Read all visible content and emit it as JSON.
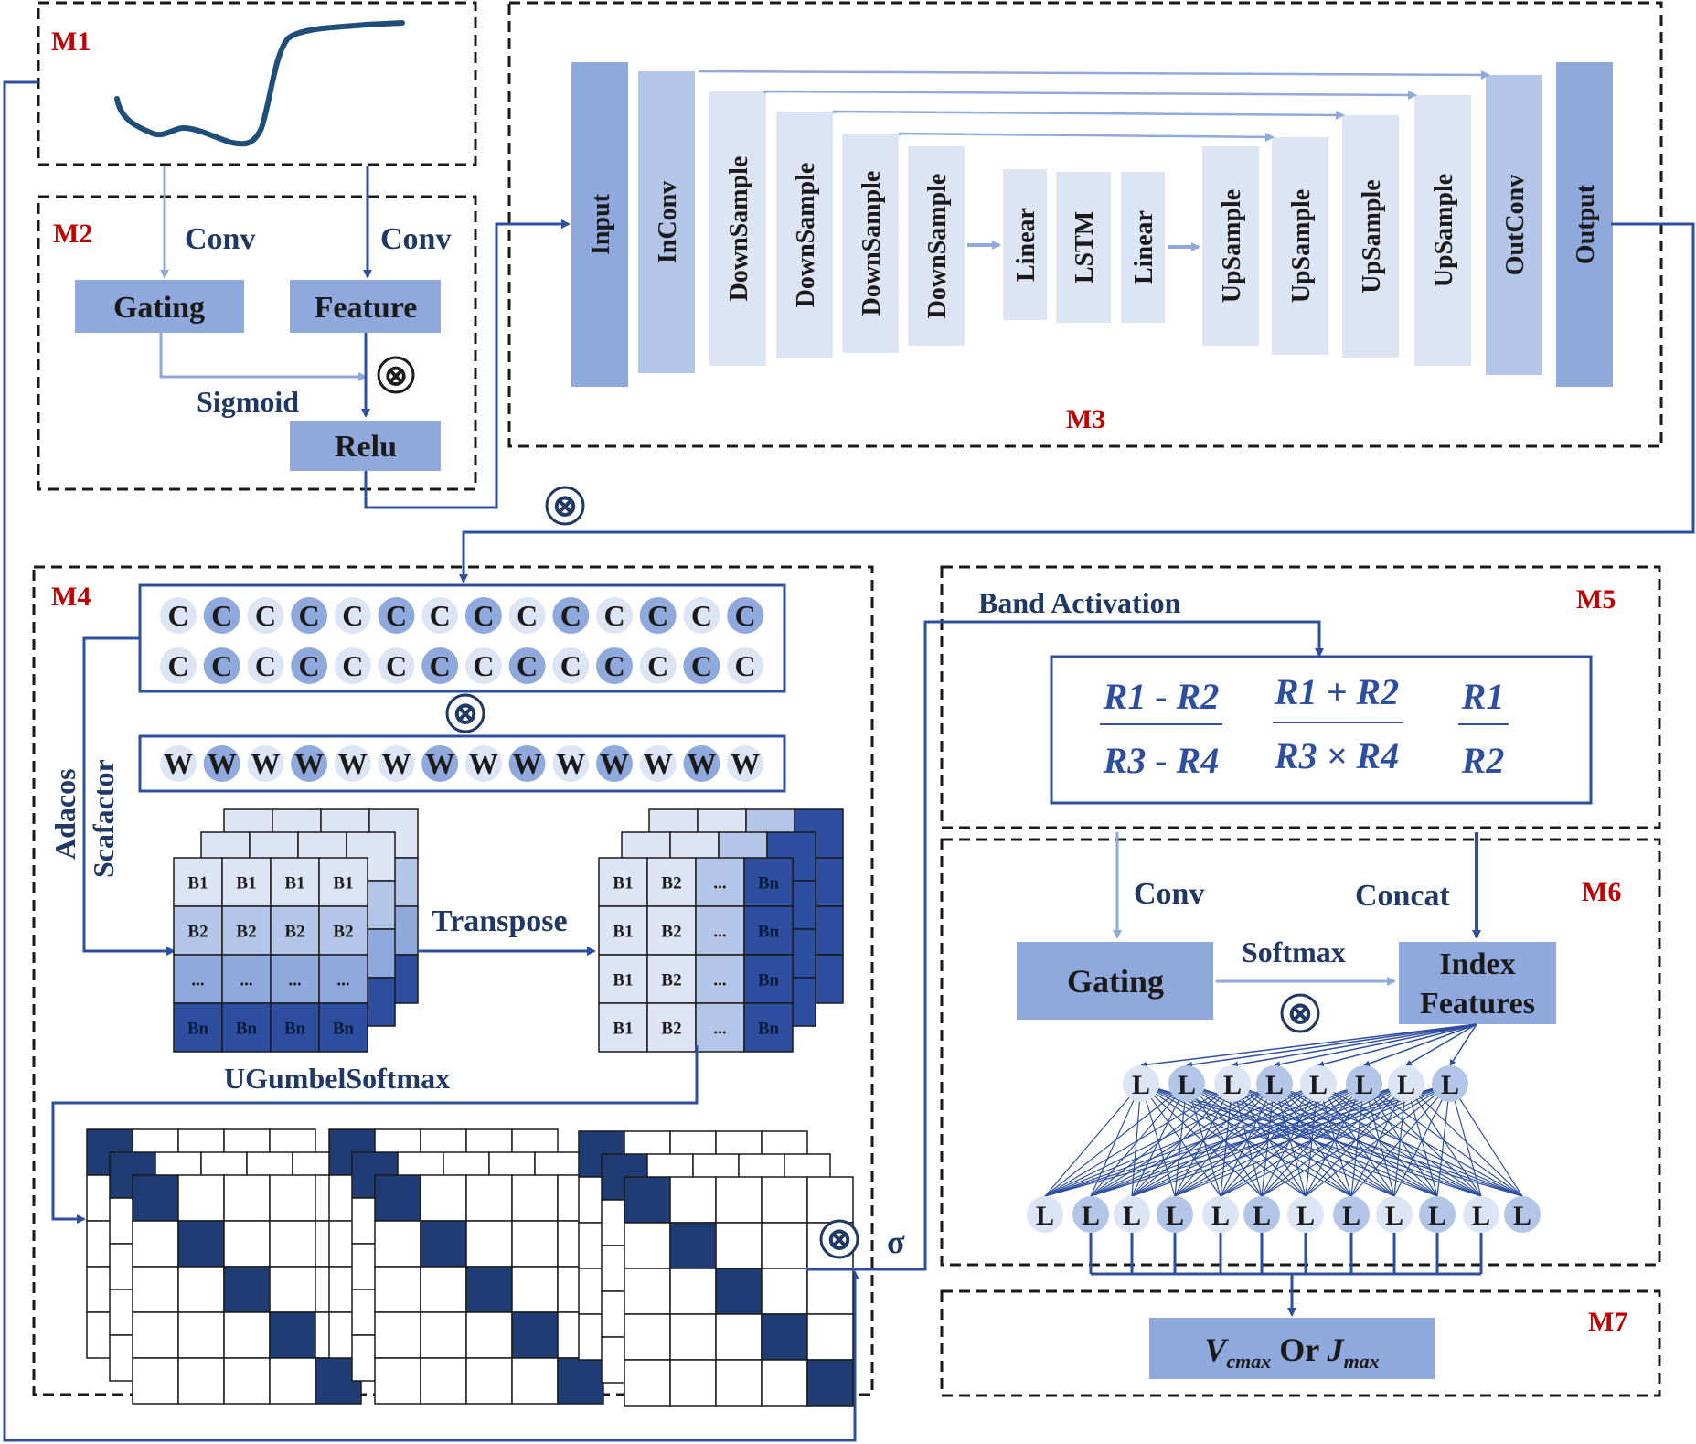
{
  "modules": {
    "m1": "M1",
    "m2": "M2",
    "m3": "M3",
    "m4": "M4",
    "m5": "M5",
    "m6": "M6",
    "m7": "M7"
  },
  "m2": {
    "conv_left": "Conv",
    "conv_right": "Conv",
    "gating": "Gating",
    "feature": "Feature",
    "sigmoid": "Sigmoid",
    "relu": "Relu"
  },
  "m3": {
    "blocks": [
      "Input",
      "InConv",
      "DownSample",
      "DownSample",
      "DownSample",
      "DownSample",
      "Linear",
      "LSTM",
      "Linear",
      "UpSample",
      "UpSample",
      "UpSample",
      "UpSample",
      "OutConv",
      "Output"
    ]
  },
  "m4": {
    "c_letter": "C",
    "w_letter": "W",
    "adacos": "Adacos",
    "scafactor": "Scafactor",
    "transpose": "Transpose",
    "ugumbel": "UGumbelSoftmax",
    "grid_left": [
      [
        "B1",
        "B1",
        "B1",
        "B1"
      ],
      [
        "B2",
        "B2",
        "B2",
        "B2"
      ],
      [
        "...",
        "...",
        "...",
        "..."
      ],
      [
        "Bn",
        "Bn",
        "Bn",
        "Bn"
      ]
    ],
    "grid_right": [
      [
        "B1",
        "B2",
        "...",
        "Bn"
      ],
      [
        "B1",
        "B2",
        "...",
        "Bn"
      ],
      [
        "B1",
        "B2",
        "...",
        "Bn"
      ],
      [
        "B1",
        "B2",
        "...",
        "Bn"
      ]
    ],
    "sigma": "σ"
  },
  "m5": {
    "band_activation": "Band Activation",
    "f1_num": "R1 - R2",
    "f1_den": "R3 - R4",
    "f2_num": "R1 + R2",
    "f2_den": "R3 × R4",
    "f3_num": "R1",
    "f3_den": "R2"
  },
  "m6": {
    "conv": "Conv",
    "concat": "Concat",
    "gating": "Gating",
    "softmax": "Softmax",
    "index_line1": "Index",
    "index_line2": "Features",
    "node": "L"
  },
  "m7": {
    "output": "Vcmax Or Jmax"
  },
  "symbols": {
    "otimes": "⊗"
  },
  "colors": {
    "dark_blue": "#2e4fa0",
    "mid_blue": "#8fa9dc",
    "light_blue": "#dde4f3",
    "navy": "#1f3c74",
    "red": "#c00000"
  }
}
